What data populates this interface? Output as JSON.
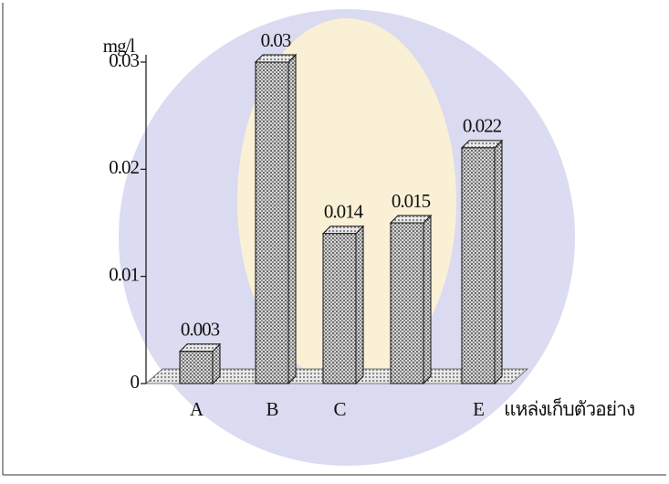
{
  "chart_data": {
    "type": "bar3d",
    "y_axis_label": "mg/l",
    "x_axis_label": "แหล่งเก็บตัวอย่าง",
    "categories": [
      "A",
      "B",
      "C",
      null,
      "E"
    ],
    "values": [
      0.003,
      0.03,
      0.014,
      0.015,
      0.022
    ],
    "ylim": [
      0,
      0.03
    ],
    "yticks": [
      0,
      0.01,
      0.02,
      0.03
    ]
  }
}
